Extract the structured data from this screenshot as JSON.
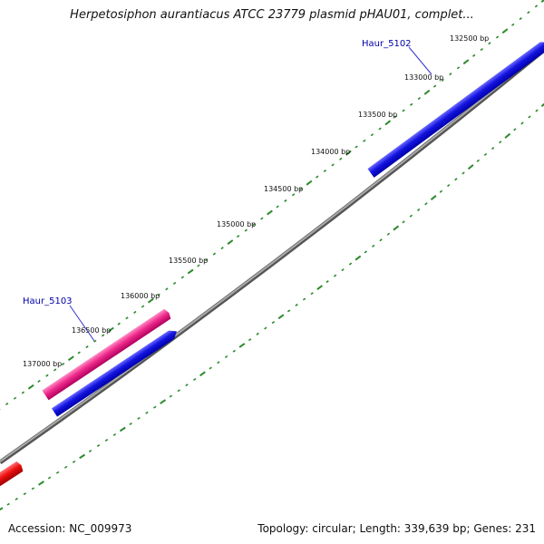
{
  "title": "Herpetosiphon aurantiacus ATCC 23779 plasmid pHAU01, complet...",
  "footer": {
    "accession": "Accession: NC_009973",
    "summary": "Topology: circular; Length: 339,639 bp; Genes: 231"
  },
  "chart_data": {
    "type": "circular-genome-map",
    "ticks": [
      "132500 bp",
      "133000 bp",
      "133500 bp",
      "134000 bp",
      "134500 bp",
      "135000 bp",
      "135500 bp",
      "136000 bp",
      "136500 bp",
      "137000 bp"
    ],
    "gene_labels": [
      "Haur_5102",
      "Haur_5103"
    ],
    "colors": {
      "backbone": "#888888",
      "tick": "#2a8a2a",
      "forward_gene": "#1010dd",
      "reverse_gene": "#ee2288",
      "other_feature": "#ee1111",
      "label_leader": "#3333cc"
    }
  }
}
